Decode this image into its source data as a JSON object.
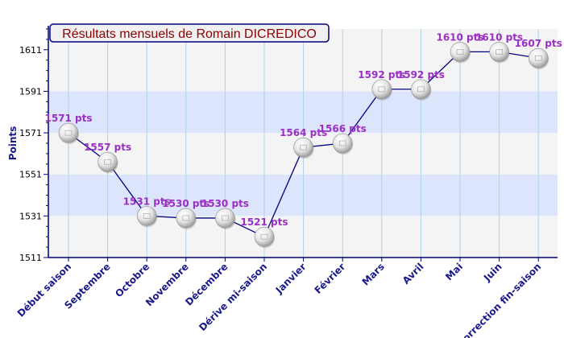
{
  "chart_data": {
    "type": "line",
    "title": "Résultats mensuels de Romain DICREDICO",
    "xlabel": "",
    "ylabel": "Points",
    "categories": [
      "Début saison",
      "Septembre",
      "Octobre",
      "Novembre",
      "Décembre",
      "Dérive mi-saison",
      "Janvier",
      "Février",
      "Mars",
      "Avril",
      "Mai",
      "Juin",
      "Correction fin-saison"
    ],
    "series": [
      {
        "values": [
          1571,
          1557,
          1531,
          1530,
          1530,
          1521,
          1564,
          1566,
          1592,
          1592,
          1610,
          1610,
          1607
        ],
        "labels": [
          "1571 pts",
          "1557 pts",
          "1531 pts",
          "1530 pts",
          "1530 pts",
          "1521 pts",
          "1564 pts",
          "1566 pts",
          "1592 pts",
          "1592 pts",
          "1610 pts",
          "1610 pts",
          "1607 pts"
        ]
      }
    ],
    "ylim": [
      1511,
      1621
    ],
    "yticks": [
      1511,
      1531,
      1551,
      1571,
      1591,
      1611
    ],
    "grid": true,
    "colors": {
      "band_light": "#f4f4f4",
      "band_blue": "#dce5fb",
      "line": "#000080",
      "axis": "#000080",
      "vgrid": "#aad4ea",
      "data_label": "#9b2fc4",
      "title_text": "#8b0000",
      "title_bg": "#f0f0f0",
      "marker": "ping-pong-ball-icon"
    }
  }
}
